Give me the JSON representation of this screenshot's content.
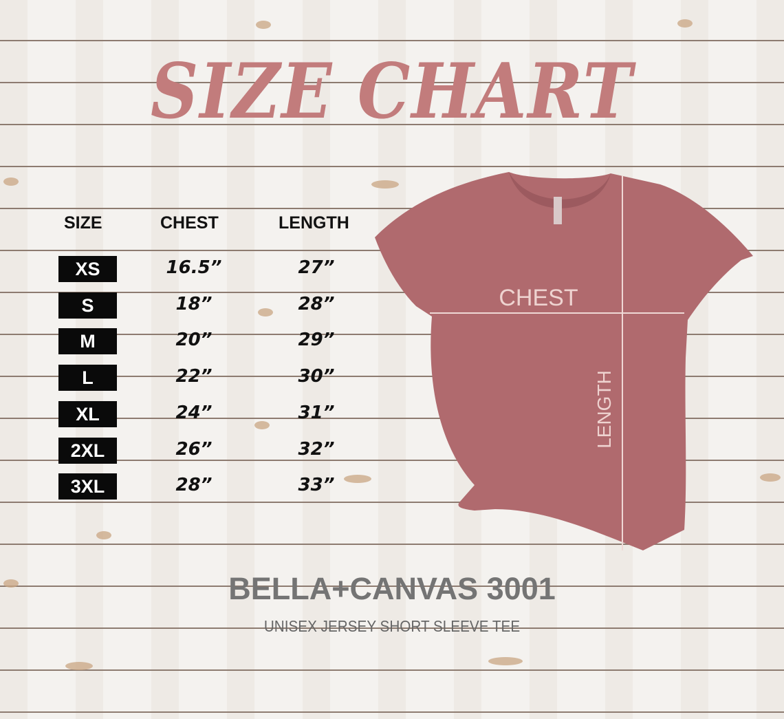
{
  "title": "SIZE CHART",
  "table": {
    "headers": [
      "SIZE",
      "CHEST",
      "LENGTH"
    ],
    "rows": [
      {
        "size": "XS",
        "chest": "16.5”",
        "length": "27”"
      },
      {
        "size": "S",
        "chest": "18”",
        "length": "28”"
      },
      {
        "size": "M",
        "chest": "20”",
        "length": "29”"
      },
      {
        "size": "L",
        "chest": "22”",
        "length": "30”"
      },
      {
        "size": "XL",
        "chest": "24”",
        "length": "31”"
      },
      {
        "size": "2XL",
        "chest": "26”",
        "length": "32”"
      },
      {
        "size": "3XL",
        "chest": "28”",
        "length": "33”"
      }
    ]
  },
  "diagram": {
    "chest_label": "CHEST",
    "length_label": "LENGTH",
    "shirt_color": "#b06a6e"
  },
  "product": {
    "name": "BELLA+CANVAS 3001",
    "description": "UNISEX JERSEY SHORT SLEEVE TEE"
  },
  "colors": {
    "title": "#c27c7c",
    "brand": "#747474"
  }
}
